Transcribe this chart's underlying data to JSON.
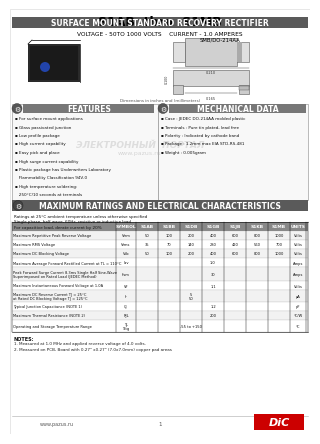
{
  "title": "S1AB  thru  S1MB",
  "subtitle": "SURFACE MOUNT STANDARD RECOVERY RECTIFIER",
  "voltage_current": "VOLTAGE - 50TO 1000 VOLTS    CURRENT - 1.0 AMPERES",
  "package_label": "SMB/DO-214AA",
  "bg_color": "#ffffff",
  "header_bg": "#5a5a5a",
  "header_text_color": "#ffffff",
  "features_title": "FEATURES",
  "features": [
    "For surface mount applications",
    "Glass passivated junction",
    "Low profile package",
    "High current capability",
    "Easy pick and place",
    "High surge current capability",
    "Plastic package has Underwriters Laboratory",
    "  Flammability Classification 94V-0",
    "High temperature soldering:",
    "  250°C/10 seconds at terminals"
  ],
  "mech_title": "MECHANICAL DATA",
  "mech_data": [
    "Case : JEDEC DO-214AA molded plastic",
    "Terminals : Pure tin plated, lead free",
    "Polarity : Indicated by cathode band",
    "Package : 1.2mm max EIA STD-RS-481",
    "Weight : 0.005gram"
  ],
  "ratings_title": "MAXIMUM RATINGS AND ELECTRICAL CHARACTERISTICS",
  "ratings_subtitle": [
    "Ratings at 25°C ambient temperature unless otherwise specified",
    "Single phase, half wave, 60Hz, resistive or inductive load",
    "For capacitive load, derate current by 20%"
  ],
  "table_col_headers": [
    "SYMBOL",
    "S1AB",
    "S1BB",
    "S1DB",
    "S1GB",
    "S1JB",
    "S1KB",
    "S1MB",
    "UNITS"
  ],
  "table_rows": [
    [
      "Maximum Repetitive Peak Reverse Voltage",
      "Vrrm",
      "50",
      "100",
      "200",
      "400",
      "600",
      "800",
      "1000",
      "Volts"
    ],
    [
      "Maximum RMS Voltage",
      "Vrms",
      "35",
      "70",
      "140",
      "280",
      "420",
      "560",
      "700",
      "Volts"
    ],
    [
      "Maximum DC Blocking Voltage",
      "Vdc",
      "50",
      "100",
      "200",
      "400",
      "600",
      "800",
      "1000",
      "Volts"
    ],
    [
      "Maximum Average Forward Rectified Current at TL = 110°C",
      "Iav",
      "",
      "",
      "",
      "1.0",
      "",
      "",
      "",
      "Amps"
    ],
    [
      "Peak Forward Surge Current 8.3ms Single Half Sine-Wave\nSuperimposed on Rated Load (JEDEC Method)",
      "Ifsm",
      "",
      "",
      "",
      "30",
      "",
      "",
      "",
      "Amps"
    ],
    [
      "Maximum Instantaneous Forward Voltage at 1.0A",
      "VF",
      "",
      "",
      "",
      "1.1",
      "",
      "",
      "",
      "Volts"
    ],
    [
      "Maximum DC Reverse Current TJ = 25°C\nat Rated DC Blocking Voltage TJ = 125°C",
      "Ir",
      "",
      "",
      "5\n50",
      "",
      "",
      "",
      "",
      "µA"
    ],
    [
      "Typical Junction Capacitance (NOTE 1)",
      "Cj",
      "",
      "",
      "",
      "1.2",
      "",
      "",
      "",
      "pF"
    ],
    [
      "Maximum Thermal Resistance (NOTE 2)",
      "RJL",
      "",
      "",
      "",
      "200",
      "",
      "",
      "",
      "°C/W"
    ],
    [
      "Operating and Storage Temperature Range",
      "TJ,\nTstg",
      "",
      "",
      "-55 to +150",
      "",
      "",
      "",
      "",
      "°C"
    ]
  ],
  "notes_title": "NOTES:",
  "notes": [
    "1. Measured at 1.0 MHz and applied reverse voltage of 4.0 volts.",
    "2. Measured on PCB, Board with 0.27\" x0.27\" (7.0x7.0mm) copper pad areas"
  ],
  "watermark_line1": "ЭЛЕКТРОННЫЙ  ПОРТАЛ",
  "watermark_url": "www.pazus.ru",
  "footer_url": "www.pazus.ru",
  "page_num": "1"
}
